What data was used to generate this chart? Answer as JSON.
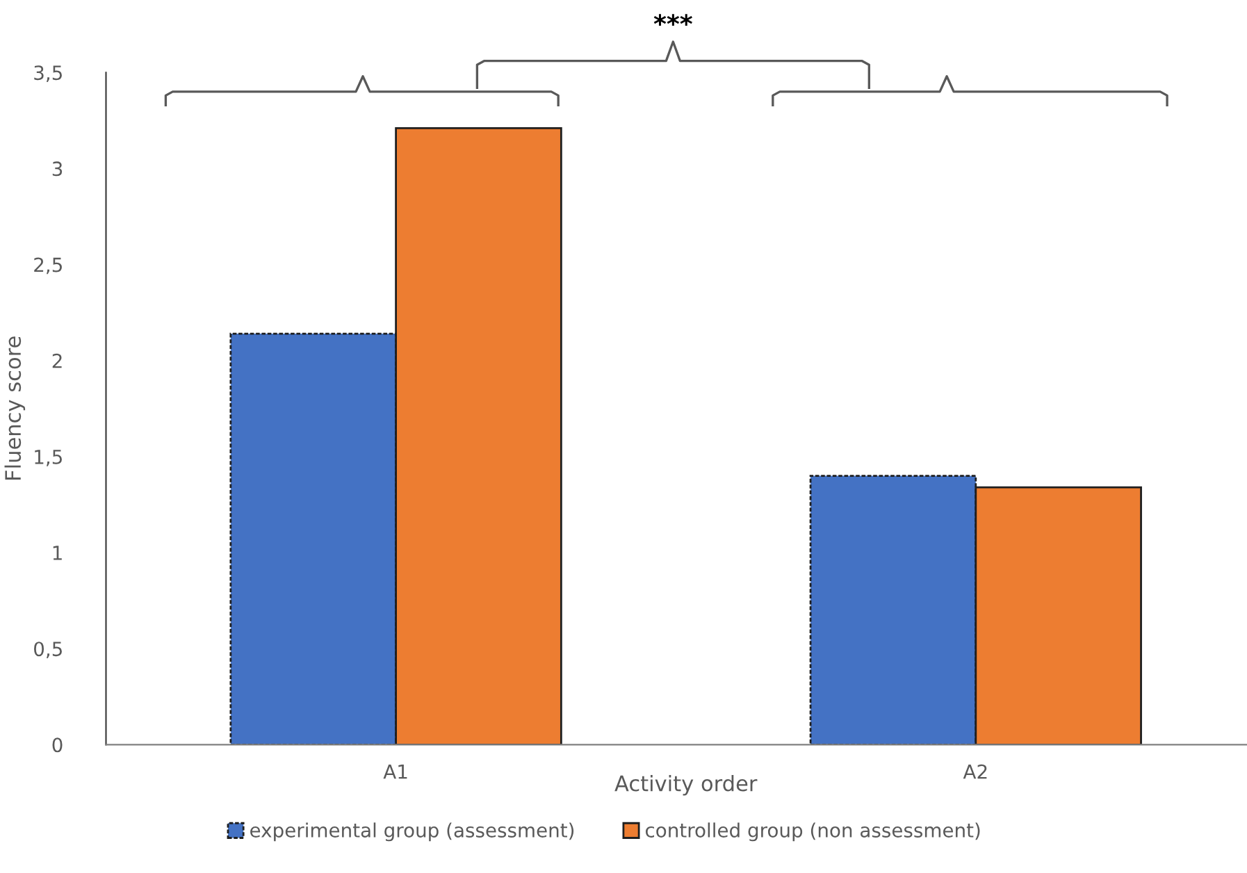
{
  "chart_data": {
    "type": "bar",
    "xlabel": "Activity order",
    "ylabel": "Fluency score",
    "categories": [
      "A1",
      "A2"
    ],
    "series": [
      {
        "name": "experimental group (assessment)",
        "color": "#4472c4",
        "values": [
          2.14,
          1.4
        ],
        "line_style": "dashed"
      },
      {
        "name": "controlled group (non assessment)",
        "color": "#ed7d31",
        "values": [
          3.21,
          1.34
        ],
        "line_style": "solid"
      }
    ],
    "ylim": [
      0,
      3.5
    ],
    "yticks": [
      0,
      {
        "value": 0.5,
        "label": "0,5"
      },
      1,
      {
        "value": 1.5,
        "label": "1,5"
      },
      2,
      {
        "value": 2.5,
        "label": "2,5"
      },
      3,
      {
        "value": 3.5,
        "label": "3,5"
      }
    ],
    "annotations": [
      "***"
    ],
    "grid": false,
    "legend": "bottom"
  }
}
